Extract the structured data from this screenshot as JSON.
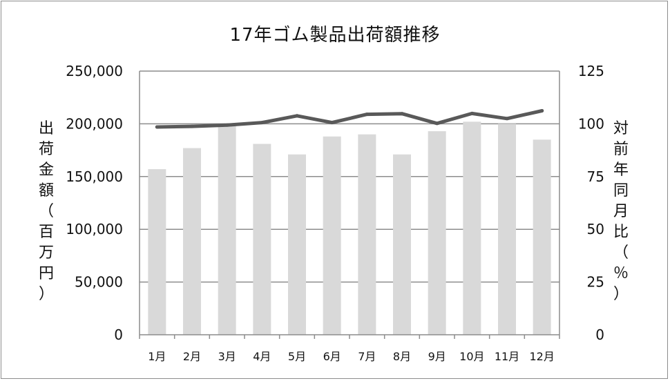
{
  "chart_data": {
    "type": "bar+line",
    "title": "17年ゴム製品出荷額推移",
    "categories": [
      "1月",
      "2月",
      "3月",
      "4月",
      "5月",
      "6月",
      "7月",
      "8月",
      "9月",
      "10月",
      "11月",
      "12月"
    ],
    "series": [
      {
        "values": [
          157000,
          177000,
          199000,
          181000,
          171000,
          188000,
          190000,
          171000,
          193000,
          202000,
          200000,
          185000
        ],
        "axis": "left",
        "color": "#d9d9d9"
      },
      {
        "values": [
          98.5,
          98.8,
          99.4,
          100.6,
          103.8,
          100.6,
          104.5,
          104.8,
          100.2,
          104.9,
          102.5,
          106.2
        ],
        "axis": "right",
        "color": "#595959"
      }
    ],
    "ylabel_left": "出荷金額（百万円）",
    "ylabel_right": "対前年同月比（％）",
    "ylim_left": [
      0,
      250000
    ],
    "ylim_right": [
      0,
      125
    ],
    "yticks_left": [
      "0",
      "50,000",
      "100,000",
      "150,000",
      "200,000",
      "250,000"
    ],
    "yticks_right": [
      "0",
      "25",
      "50",
      "75",
      "100",
      "125"
    ],
    "grid": true
  }
}
